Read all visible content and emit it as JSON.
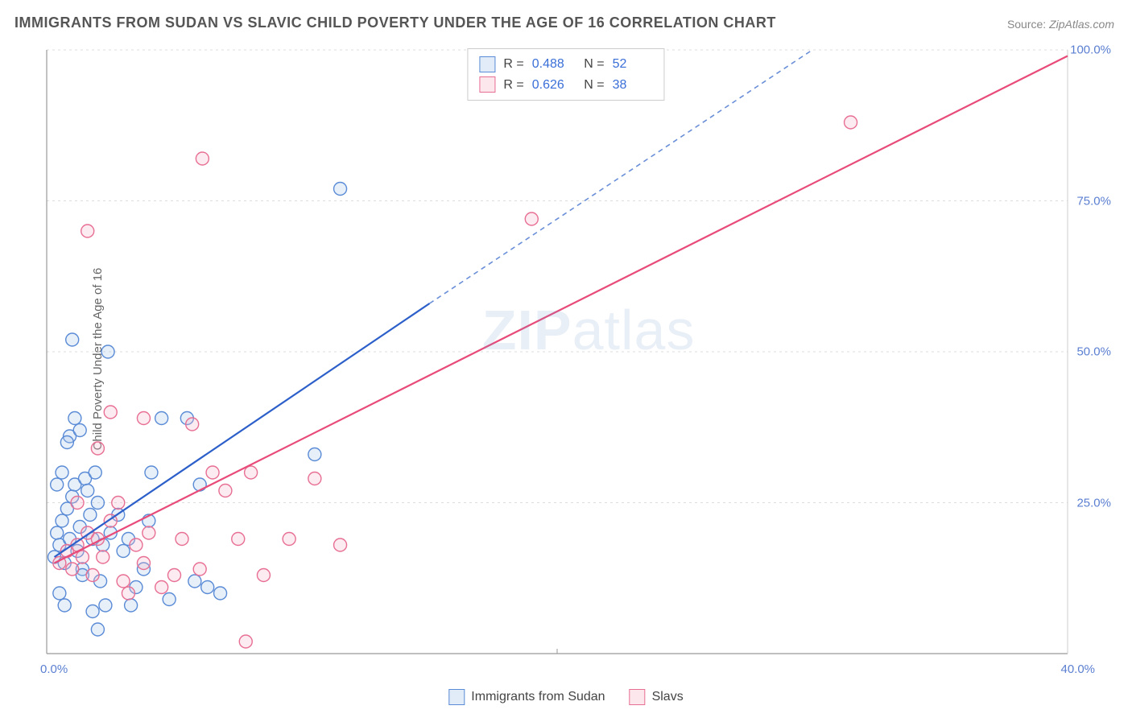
{
  "title": "IMMIGRANTS FROM SUDAN VS SLAVIC CHILD POVERTY UNDER THE AGE OF 16 CORRELATION CHART",
  "source_label": "Source:",
  "source_value": "ZipAtlas.com",
  "y_axis_label": "Child Poverty Under the Age of 16",
  "watermark_bold": "ZIP",
  "watermark_rest": "atlas",
  "chart": {
    "type": "scatter",
    "xlim": [
      0,
      40
    ],
    "ylim": [
      0,
      100
    ],
    "x_ticks": [
      {
        "v": 0,
        "l": "0.0%"
      },
      {
        "v": 40,
        "l": "40.0%"
      }
    ],
    "y_ticks": [
      {
        "v": 25,
        "l": "25.0%"
      },
      {
        "v": 50,
        "l": "50.0%"
      },
      {
        "v": 75,
        "l": "75.0%"
      },
      {
        "v": 100,
        "l": "100.0%"
      }
    ],
    "grid_color": "#dddddd",
    "grid_dash": "3,4",
    "axis_color": "#999999",
    "background_color": "#ffffff",
    "marker_radius": 8,
    "marker_stroke_width": 1.4,
    "marker_fill_opacity": 0.28,
    "series": [
      {
        "id": "sudan",
        "label": "Immigrants from Sudan",
        "color_stroke": "#5a8bd6",
        "color_fill": "#a8c4ea",
        "r": 0.488,
        "n": 52,
        "trend": {
          "x1": 0.3,
          "y1": 16,
          "x2": 15,
          "y2": 58,
          "color": "#2c5fc9",
          "width": 2.2
        },
        "trend_ext": {
          "x1": 15,
          "y1": 58,
          "x2": 30,
          "y2": 100,
          "dash": "6,5",
          "color": "#6a8fd8",
          "width": 1.6
        },
        "points": [
          [
            0.3,
            16
          ],
          [
            0.4,
            20
          ],
          [
            0.5,
            18
          ],
          [
            0.6,
            22
          ],
          [
            0.7,
            15
          ],
          [
            0.8,
            24
          ],
          [
            0.9,
            19
          ],
          [
            1.0,
            26
          ],
          [
            1.1,
            28
          ],
          [
            1.2,
            17
          ],
          [
            1.3,
            21
          ],
          [
            1.4,
            14
          ],
          [
            1.5,
            29
          ],
          [
            1.6,
            27
          ],
          [
            1.7,
            23
          ],
          [
            1.8,
            19
          ],
          [
            1.9,
            30
          ],
          [
            2.0,
            25
          ],
          [
            2.1,
            12
          ],
          [
            2.2,
            18
          ],
          [
            0.9,
            36
          ],
          [
            1.3,
            37
          ],
          [
            1.1,
            39
          ],
          [
            0.4,
            28
          ],
          [
            0.6,
            30
          ],
          [
            0.8,
            35
          ],
          [
            2.5,
            20
          ],
          [
            2.8,
            23
          ],
          [
            3.0,
            17
          ],
          [
            3.2,
            19
          ],
          [
            3.5,
            11
          ],
          [
            3.8,
            14
          ],
          [
            4.1,
            30
          ],
          [
            4.5,
            39
          ],
          [
            4.8,
            9
          ],
          [
            5.5,
            39
          ],
          [
            5.8,
            12
          ],
          [
            6.0,
            28
          ],
          [
            6.3,
            11
          ],
          [
            6.8,
            10
          ],
          [
            2.4,
            50
          ],
          [
            1.0,
            52
          ],
          [
            1.4,
            13
          ],
          [
            1.8,
            7
          ],
          [
            2.0,
            4
          ],
          [
            2.3,
            8
          ],
          [
            0.5,
            10
          ],
          [
            0.7,
            8
          ],
          [
            3.3,
            8
          ],
          [
            4.0,
            22
          ],
          [
            11.5,
            77
          ],
          [
            10.5,
            33
          ]
        ]
      },
      {
        "id": "slavs",
        "label": "Slavs",
        "color_stroke": "#e86f94",
        "color_fill": "#f5b6c8",
        "r": 0.626,
        "n": 38,
        "trend": {
          "x1": 0.3,
          "y1": 15,
          "x2": 40,
          "y2": 99,
          "color": "#e84b7a",
          "width": 2.2
        },
        "points": [
          [
            0.5,
            15
          ],
          [
            0.8,
            17
          ],
          [
            1.0,
            14
          ],
          [
            1.2,
            18
          ],
          [
            1.4,
            16
          ],
          [
            1.6,
            20
          ],
          [
            1.8,
            13
          ],
          [
            2.0,
            19
          ],
          [
            2.2,
            16
          ],
          [
            2.5,
            22
          ],
          [
            2.8,
            25
          ],
          [
            3.0,
            12
          ],
          [
            3.2,
            10
          ],
          [
            3.5,
            18
          ],
          [
            3.8,
            15
          ],
          [
            4.0,
            20
          ],
          [
            4.5,
            11
          ],
          [
            5.0,
            13
          ],
          [
            5.3,
            19
          ],
          [
            5.7,
            38
          ],
          [
            6.0,
            14
          ],
          [
            6.5,
            30
          ],
          [
            7.0,
            27
          ],
          [
            7.5,
            19
          ],
          [
            8.0,
            30
          ],
          [
            8.5,
            13
          ],
          [
            9.5,
            19
          ],
          [
            10.5,
            29
          ],
          [
            11.5,
            18
          ],
          [
            2.0,
            34
          ],
          [
            2.5,
            40
          ],
          [
            3.8,
            39
          ],
          [
            1.2,
            25
          ],
          [
            1.6,
            70
          ],
          [
            6.1,
            82
          ],
          [
            7.8,
            2
          ],
          [
            19,
            72
          ],
          [
            31.5,
            88
          ]
        ]
      }
    ]
  },
  "legend_top": {
    "r_label": "R =",
    "n_label": "N ="
  },
  "legend_bottom_labels": [
    "Immigrants from Sudan",
    "Slavs"
  ]
}
